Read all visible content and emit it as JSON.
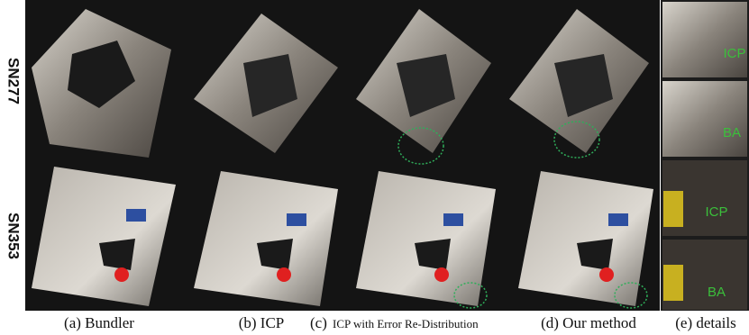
{
  "row_labels": [
    "SN277",
    "SN353"
  ],
  "captions": [
    "(a) Bundler",
    "(b) ICP",
    {
      "label": "(c)",
      "text": "ICP with Error Re-Distribution"
    },
    "(d) Our method",
    "(e) details"
  ],
  "details": [
    "ICP",
    "BA",
    "ICP",
    "BA"
  ]
}
